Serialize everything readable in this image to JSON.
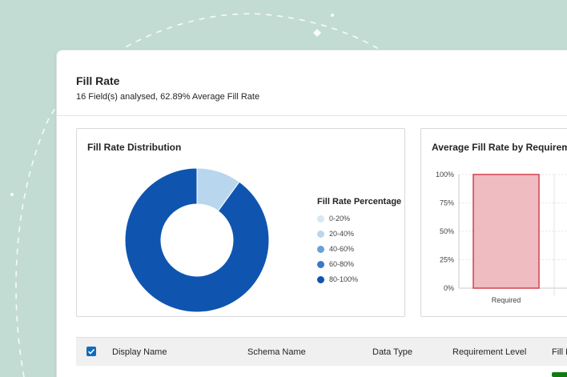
{
  "header": {
    "title": "Fill Rate",
    "subtitle": "16 Field(s) analysed, 62.89% Average Fill Rate"
  },
  "distribution": {
    "title": "Fill Rate Distribution",
    "legend_title": "Fill Rate Percentage",
    "legend": [
      {
        "label": "0-20%",
        "color": "#d6e8f5"
      },
      {
        "label": "20-40%",
        "color": "#b9d6ef"
      },
      {
        "label": "40-60%",
        "color": "#6a9fd8"
      },
      {
        "label": "60-80%",
        "color": "#3a78c9"
      },
      {
        "label": "80-100%",
        "color": "#0f55b0"
      }
    ]
  },
  "requirement_chart": {
    "title": "Average Fill Rate by Requireme",
    "y_ticks": [
      "0%",
      "25%",
      "50%",
      "75%",
      "100%"
    ],
    "x_label": "Required"
  },
  "table": {
    "columns": [
      "Display Name",
      "Schema Name",
      "Data Type",
      "Requirement Level",
      "Fill F"
    ]
  },
  "chart_data": [
    {
      "type": "pie",
      "title": "Fill Rate Distribution",
      "legend_title": "Fill Rate Percentage",
      "labels": [
        "0-20%",
        "20-40%",
        "40-60%",
        "60-80%",
        "80-100%"
      ],
      "values": [
        0,
        10,
        0,
        0,
        90
      ],
      "colors": [
        "#d6e8f5",
        "#b9d6ef",
        "#6a9fd8",
        "#3a78c9",
        "#0f55b0"
      ]
    },
    {
      "type": "bar",
      "title": "Average Fill Rate by Requireme",
      "categories": [
        "Required"
      ],
      "values": [
        100
      ],
      "ylim": [
        0,
        100
      ],
      "y_ticks": [
        "0%",
        "25%",
        "50%",
        "75%",
        "100%"
      ],
      "bar_fill": "#eebcc1",
      "bar_stroke": "#d0414f"
    }
  ]
}
